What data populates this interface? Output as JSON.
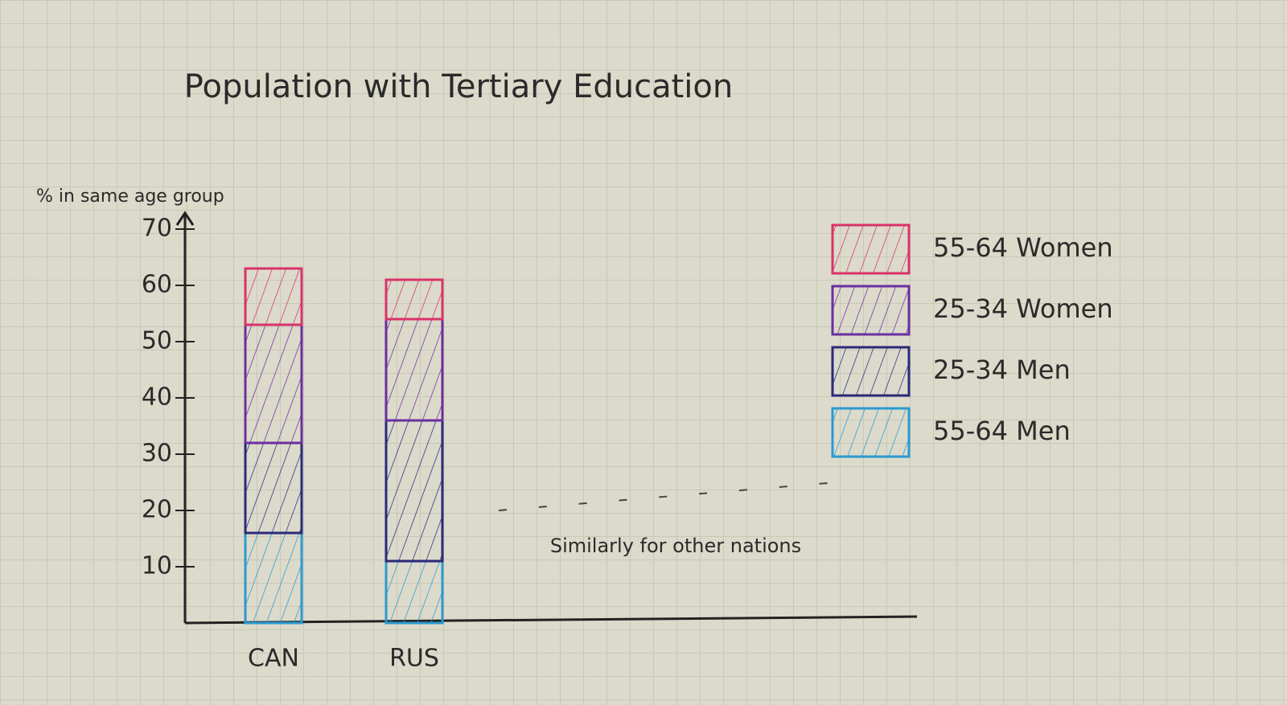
{
  "chart_data": {
    "type": "stacked_bar",
    "title": "Population with Tertiary Education",
    "y_label": "% in same age group",
    "categories": [
      "CAN",
      "RUS"
    ],
    "series": [
      {
        "name": "55-64 Women",
        "color": "#d8336a",
        "values": [
          10,
          7
        ]
      },
      {
        "name": "25-34 Women",
        "color": "#6a2fa0",
        "values": [
          21,
          18
        ]
      },
      {
        "name": "25-34 Men",
        "color": "#2b2a7a",
        "values": [
          16,
          25
        ]
      },
      {
        "name": "55-64 Men",
        "color": "#2a9ad0",
        "values": [
          16,
          11
        ]
      }
    ],
    "ylim": [
      0,
      70
    ],
    "yticks": [
      10,
      20,
      30,
      40,
      50,
      60,
      70
    ],
    "annotation": "Similarly for other nations",
    "legend": "right"
  }
}
